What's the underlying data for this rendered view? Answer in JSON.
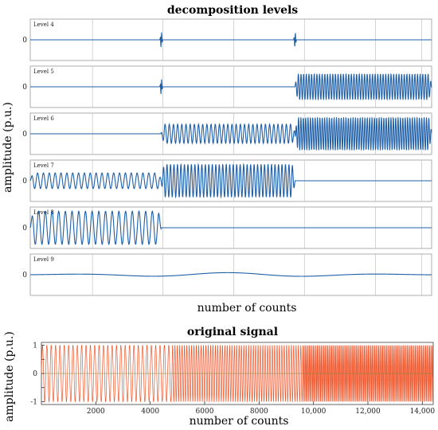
{
  "chart_data": [
    {
      "type": "line",
      "title": "decomposition levels",
      "xlabel": "number of counts",
      "ylabel": "amplitude (p.u.)",
      "line_color": "#1f5fa8",
      "panels": [
        {
          "label": "Level 4",
          "ytick": "0",
          "features": [
            {
              "kind": "spike",
              "x": 4700
            },
            {
              "kind": "spike",
              "x": 9500
            }
          ]
        },
        {
          "label": "Level 5",
          "ytick": "0",
          "features": [
            {
              "kind": "spike",
              "x": 4700
            },
            {
              "kind": "oscillation",
              "from": 9500,
              "to": 14400,
              "amplitude": 0.75
            }
          ]
        },
        {
          "label": "Level 6",
          "ytick": "0",
          "features": [
            {
              "kind": "oscillation",
              "from": 4700,
              "to": 9500,
              "amplitude": 0.55
            },
            {
              "kind": "oscillation",
              "from": 9500,
              "to": 14400,
              "amplitude": 0.95
            }
          ]
        },
        {
          "label": "Level 7",
          "ytick": "0",
          "features": [
            {
              "kind": "oscillation",
              "from": 0,
              "to": 4700,
              "amplitude": 0.45
            },
            {
              "kind": "oscillation",
              "from": 4700,
              "to": 9500,
              "amplitude": 0.95
            }
          ]
        },
        {
          "label": "Level 8",
          "ytick": "0",
          "features": [
            {
              "kind": "oscillation",
              "from": 0,
              "to": 4700,
              "amplitude": 0.95
            }
          ]
        },
        {
          "label": "Level 9",
          "ytick": "0",
          "features": [
            {
              "kind": "wobble",
              "amplitude": 0.12
            }
          ]
        }
      ]
    },
    {
      "type": "line",
      "title": "original signal",
      "xlabel": "number of counts",
      "ylabel": "amplitude (p.u.)",
      "xlim": [
        0,
        14400
      ],
      "ylim": [
        -1.1,
        1.1
      ],
      "xticks": [
        2000,
        4000,
        6000,
        8000,
        10000,
        12000,
        14000
      ],
      "xtick_labels": [
        "2000",
        "4000",
        "6000",
        "8000",
        "10,000",
        "12,000",
        "14,000"
      ],
      "yticks": [
        -1,
        -0.5,
        0,
        0.5,
        1
      ],
      "ytick_labels": [
        "-1",
        "",
        "0",
        "",
        "1"
      ],
      "line_color": "#f0552a",
      "segments": [
        {
          "from": 0,
          "to": 4800,
          "cycles": 30
        },
        {
          "from": 4800,
          "to": 9600,
          "cycles": 55
        },
        {
          "from": 9600,
          "to": 14400,
          "cycles": 100
        }
      ]
    }
  ]
}
